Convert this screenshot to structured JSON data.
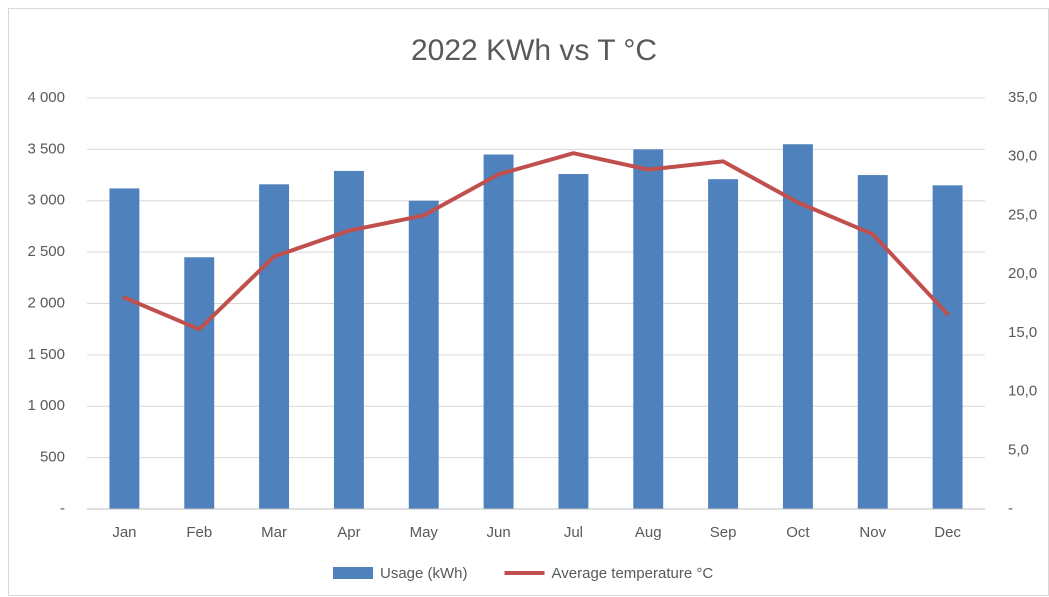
{
  "chart_data": {
    "type": "bar",
    "title": "2022 KWh vs T °C",
    "categories": [
      "Jan",
      "Feb",
      "Mar",
      "Apr",
      "May",
      "Jun",
      "Jul",
      "Aug",
      "Sep",
      "Oct",
      "Nov",
      "Dec"
    ],
    "series": [
      {
        "name": "Usage (kWh)",
        "type": "bar",
        "color": "#4f81bd",
        "values": [
          3120,
          2450,
          3160,
          3290,
          3000,
          3450,
          3260,
          3500,
          3210,
          3550,
          3250,
          3150
        ]
      },
      {
        "name": "Average temperature °C",
        "type": "line",
        "axis": "y2",
        "color": "#c0504d",
        "values": [
          18.0,
          15.3,
          21.5,
          23.7,
          25.0,
          28.5,
          30.3,
          28.9,
          29.6,
          26.1,
          23.4,
          16.6
        ]
      }
    ],
    "ylim": [
      0,
      4000
    ],
    "yticks": [
      {
        "value": 0,
        "label": "-"
      },
      500,
      {
        "value": 1000,
        "label": "1 000"
      },
      {
        "value": 1500,
        "label": "1 500"
      },
      {
        "value": 2000,
        "label": "2 000"
      },
      {
        "value": 2500,
        "label": "2 500"
      },
      {
        "value": 3000,
        "label": "3 000"
      },
      {
        "value": 3500,
        "label": "3 500"
      },
      {
        "value": 4000,
        "label": "4 000"
      }
    ],
    "y2lim": [
      0,
      35
    ],
    "y2ticks": [
      {
        "value": 0,
        "label": "-"
      },
      {
        "value": 5,
        "label": "5,0"
      },
      {
        "value": 10,
        "label": "10,0"
      },
      {
        "value": 15,
        "label": "15,0"
      },
      {
        "value": 20,
        "label": "20,0"
      },
      {
        "value": 25,
        "label": "25,0"
      },
      {
        "value": 30,
        "label": "30,0"
      },
      {
        "value": 35,
        "label": "35,0"
      }
    ],
    "grid": true,
    "legend": "bottom"
  }
}
